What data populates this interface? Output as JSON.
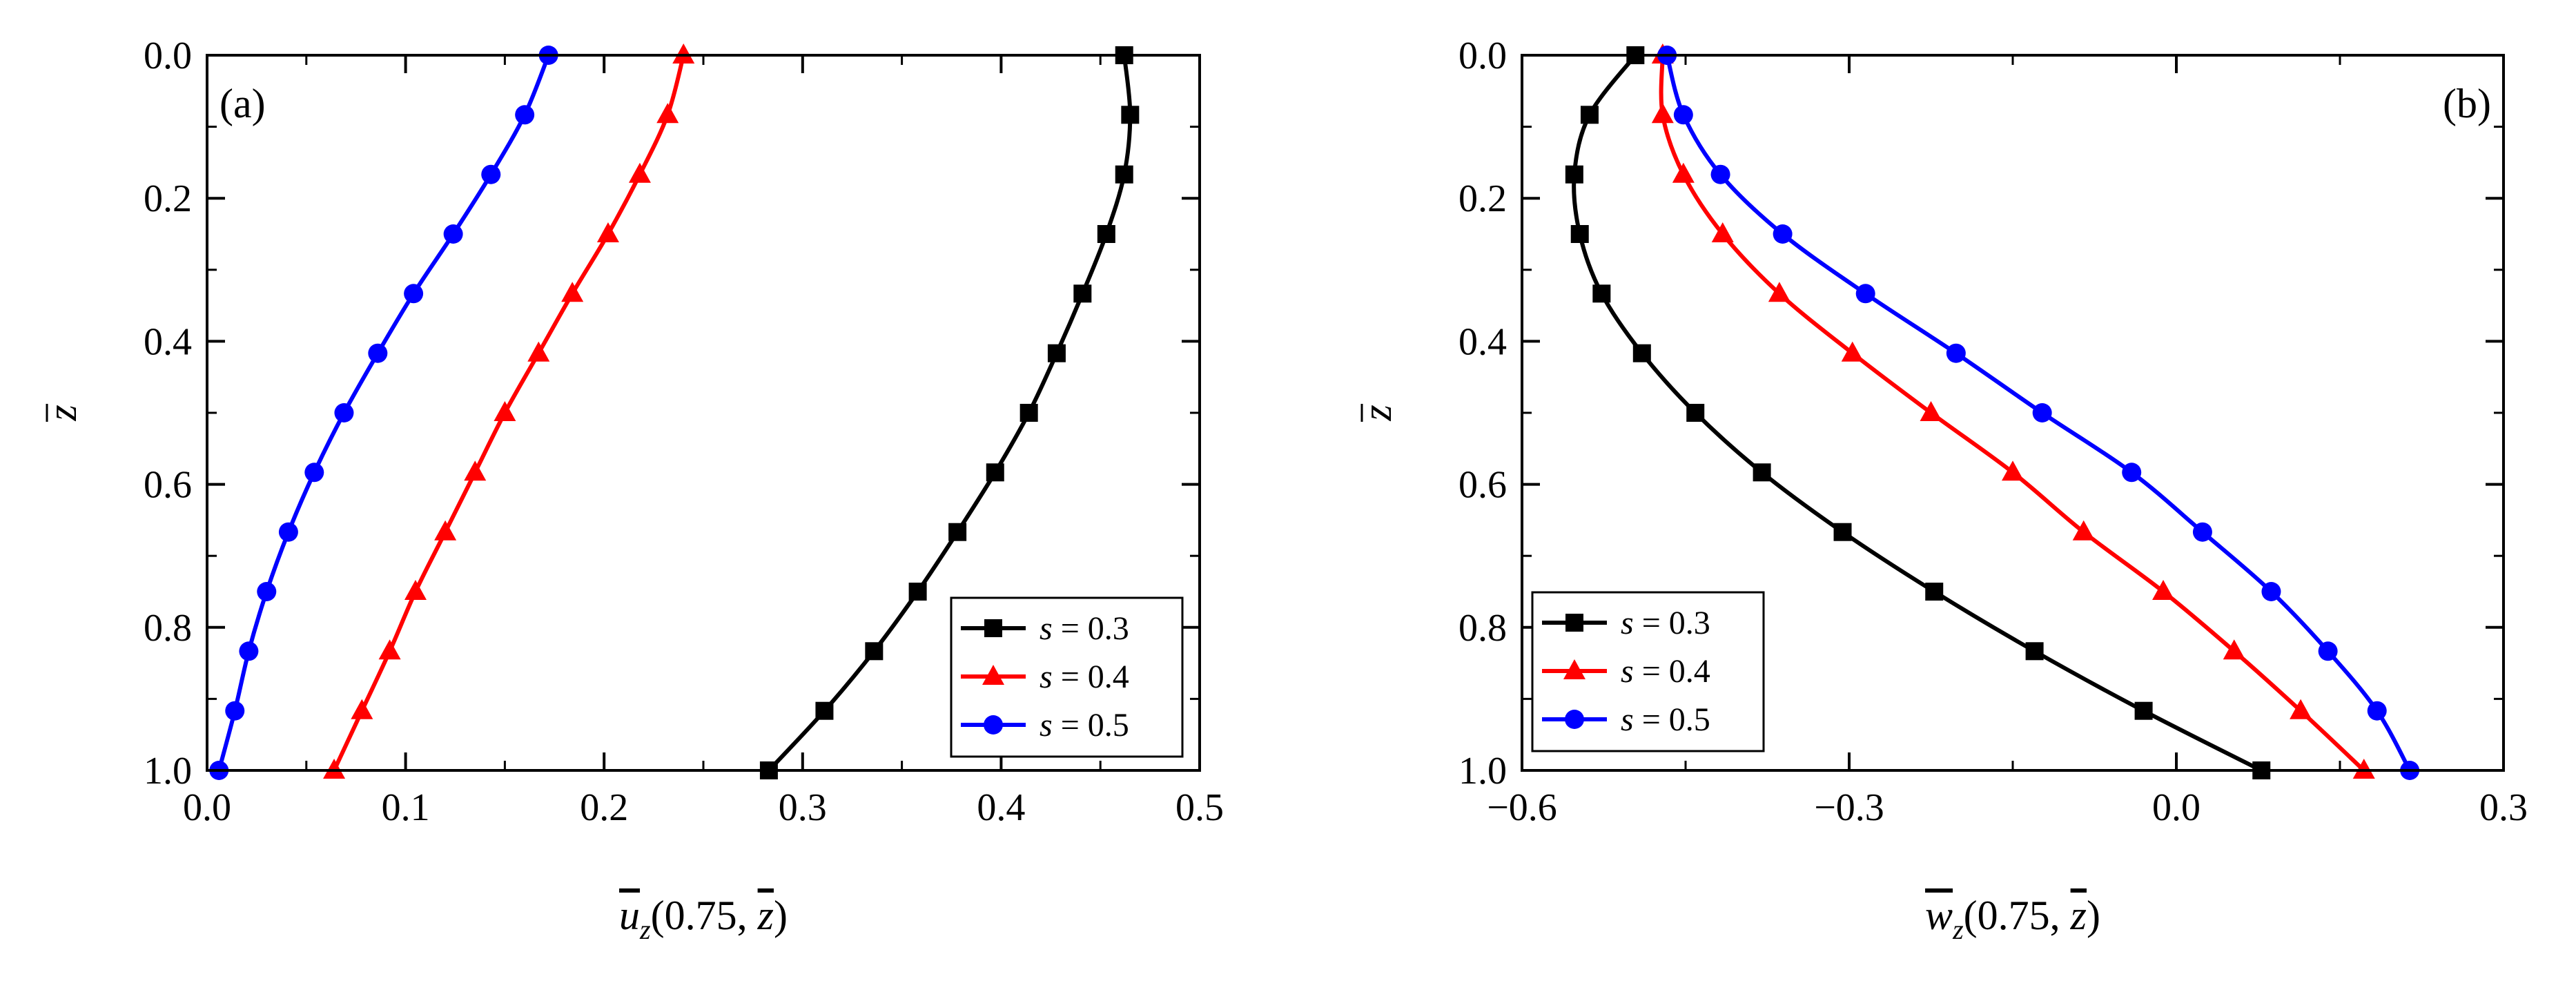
{
  "chart_data": [
    {
      "type": "line",
      "panel_label": "(a)",
      "xlabel": "ū_z(0.75, z̄)",
      "xlabel_parts": {
        "base": "u",
        "sub": "z",
        "args": "(0.75,",
        "arg2": "z",
        "close": ")"
      },
      "ylabel": "z̄",
      "xlim": [
        0.0,
        0.5
      ],
      "ylim": [
        0.0,
        1.0
      ],
      "y_inverted": true,
      "xticks": [
        0.0,
        0.1,
        0.2,
        0.3,
        0.4,
        0.5
      ],
      "xtick_labels": [
        "0.0",
        "0.1",
        "0.2",
        "0.3",
        "0.4",
        "0.5"
      ],
      "yticks": [
        0.0,
        0.2,
        0.4,
        0.6,
        0.8,
        1.0
      ],
      "ytick_labels": [
        "0.0",
        "0.2",
        "0.4",
        "0.6",
        "0.8",
        "1.0"
      ],
      "legend_position": "bottom-right",
      "marker_z": [
        0.0,
        0.0833,
        0.1667,
        0.25,
        0.3333,
        0.4167,
        0.5,
        0.5833,
        0.6667,
        0.75,
        0.8333,
        0.9167,
        1.0
      ],
      "series": [
        {
          "name": "s = 0.3",
          "s_var": "s",
          "s_value": "= 0.3",
          "color": "#000000",
          "marker": "square",
          "x": [
            0.462,
            0.465,
            0.462,
            0.453,
            0.441,
            0.428,
            0.414,
            0.397,
            0.378,
            0.358,
            0.336,
            0.311,
            0.283
          ]
        },
        {
          "name": "s = 0.4",
          "s_var": "s",
          "s_value": "= 0.4",
          "color": "#ff0000",
          "marker": "triangle",
          "x": [
            0.24,
            0.232,
            0.218,
            0.202,
            0.184,
            0.167,
            0.15,
            0.135,
            0.12,
            0.105,
            0.092,
            0.078,
            0.064
          ]
        },
        {
          "name": "s = 0.5",
          "s_var": "s",
          "s_value": "= 0.5",
          "color": "#0000ff",
          "marker": "circle",
          "x": [
            0.172,
            0.16,
            0.143,
            0.124,
            0.104,
            0.086,
            0.069,
            0.054,
            0.041,
            0.03,
            0.021,
            0.014,
            0.006
          ]
        }
      ]
    },
    {
      "type": "line",
      "panel_label": "(b)",
      "xlabel": "w̄_z(0.75, z̄)",
      "xlabel_parts": {
        "base": "w",
        "sub": "z",
        "args": "(0.75,",
        "arg2": "z",
        "close": ")"
      },
      "ylabel": "z̄",
      "xlim": [
        -0.6,
        0.3
      ],
      "ylim": [
        0.0,
        1.0
      ],
      "y_inverted": true,
      "xticks": [
        -0.6,
        -0.3,
        0.0,
        0.3
      ],
      "xtick_labels": [
        "−0.6",
        "−0.3",
        "0.0",
        "0.3"
      ],
      "yticks": [
        0.0,
        0.2,
        0.4,
        0.6,
        0.8,
        1.0
      ],
      "ytick_labels": [
        "0.0",
        "0.2",
        "0.4",
        "0.6",
        "0.8",
        "1.0"
      ],
      "legend_position": "bottom-left",
      "marker_z": [
        0.0,
        0.0833,
        0.1667,
        0.25,
        0.3333,
        0.4167,
        0.5,
        0.5833,
        0.6667,
        0.75,
        0.8333,
        0.9167,
        1.0
      ],
      "series": [
        {
          "name": "s = 0.3",
          "s_var": "s",
          "s_value": "= 0.3",
          "color": "#000000",
          "marker": "square",
          "x": [
            -0.496,
            -0.538,
            -0.552,
            -0.547,
            -0.527,
            -0.49,
            -0.441,
            -0.38,
            -0.306,
            -0.222,
            -0.13,
            -0.03,
            0.078
          ]
        },
        {
          "name": "s = 0.4",
          "s_var": "s",
          "s_value": "= 0.4",
          "color": "#ff0000",
          "marker": "triangle",
          "x": [
            -0.471,
            -0.471,
            -0.452,
            -0.416,
            -0.364,
            -0.297,
            -0.225,
            -0.15,
            -0.085,
            -0.012,
            0.053,
            0.114,
            0.172
          ]
        },
        {
          "name": "s = 0.5",
          "s_var": "s",
          "s_value": "= 0.5",
          "color": "#0000ff",
          "marker": "circle",
          "x": [
            -0.467,
            -0.452,
            -0.418,
            -0.361,
            -0.285,
            -0.202,
            -0.123,
            -0.041,
            0.024,
            0.087,
            0.139,
            0.184,
            0.214
          ]
        }
      ]
    }
  ]
}
